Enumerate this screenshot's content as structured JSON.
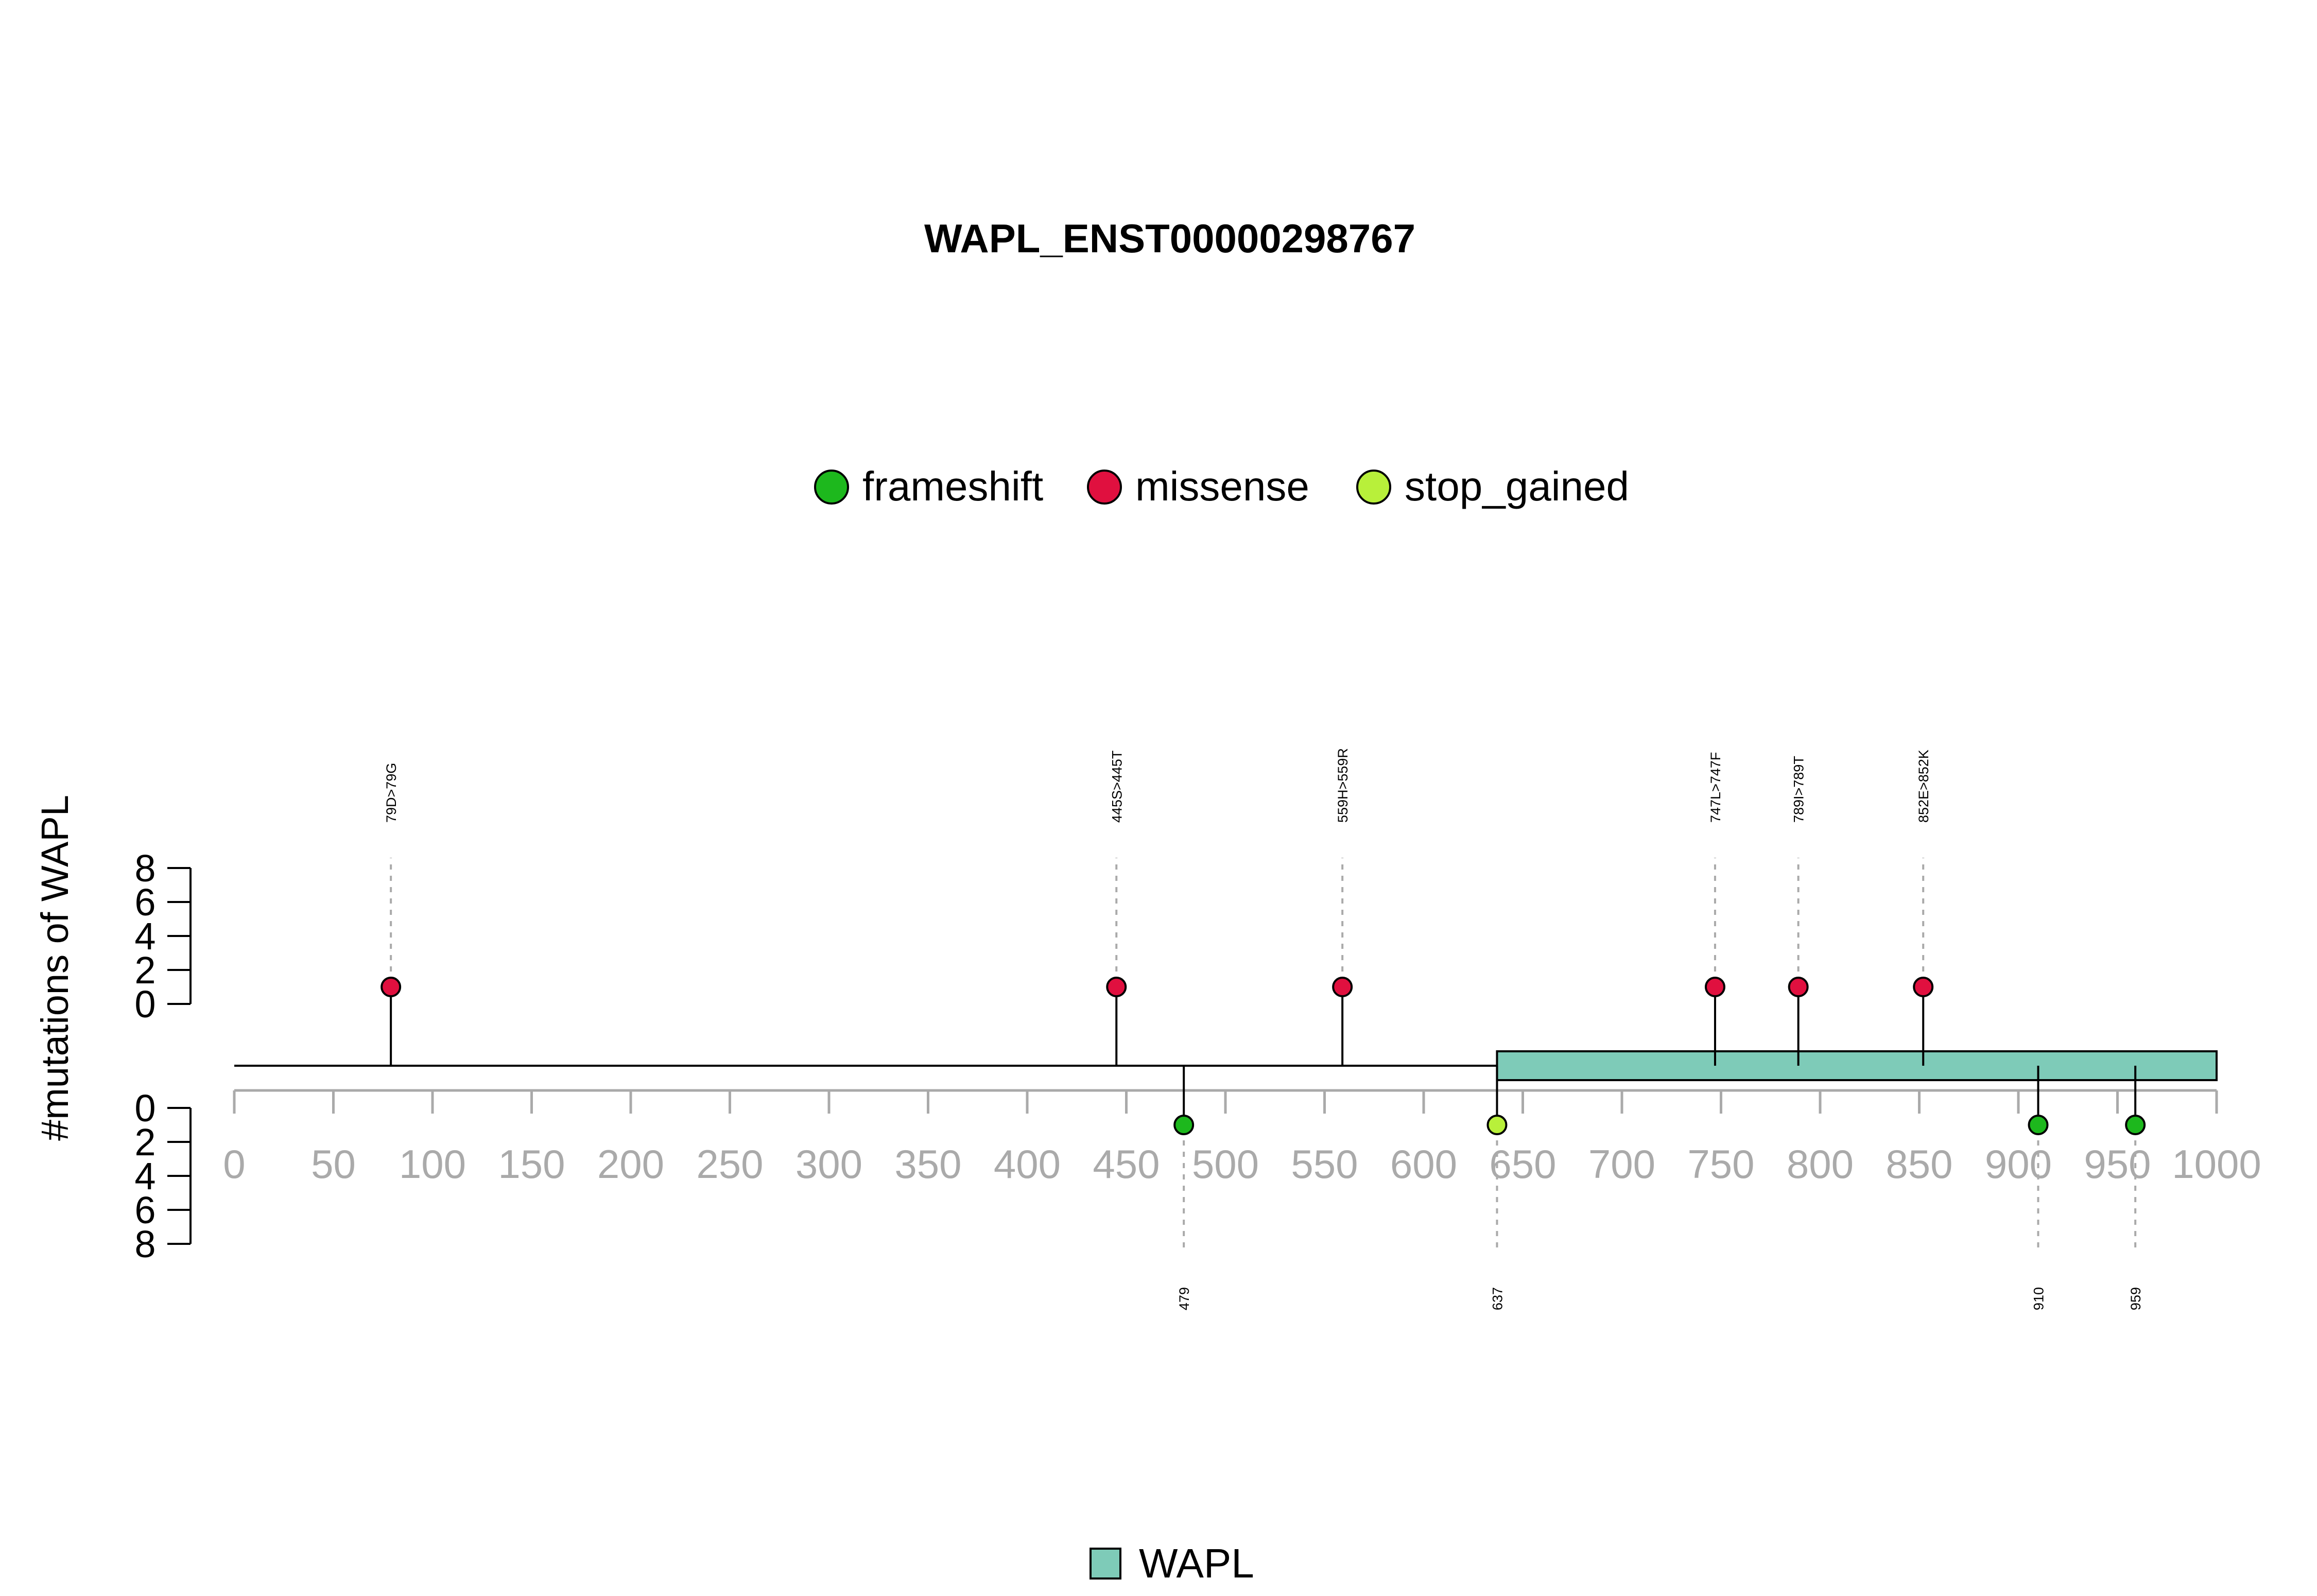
{
  "chart_data": {
    "type": "lollipop",
    "title": "WAPL_ENST00000298767",
    "ylabel": "#mutations of WAPL",
    "x_ticks": [
      0,
      50,
      100,
      150,
      200,
      250,
      300,
      350,
      400,
      450,
      500,
      550,
      600,
      650,
      700,
      750,
      800,
      850,
      900,
      950,
      1000
    ],
    "xlim": [
      0,
      1000
    ],
    "y_ticks": [
      0,
      2,
      4,
      6,
      8
    ],
    "ylim": [
      0,
      8
    ],
    "protein_length": 1000,
    "legend_top": {
      "placement": "top-center",
      "entries": [
        {
          "name": "frameshift",
          "color": "#1DB81D"
        },
        {
          "name": "missense",
          "color": "#E0103F"
        },
        {
          "name": "stop_gained",
          "color": "#B8F03A"
        }
      ]
    },
    "legend_bottom": {
      "placement": "bottom-center",
      "entries": [
        {
          "name": "WAPL",
          "color": "#7ECBB8"
        }
      ]
    },
    "domains": [
      {
        "name": "WAPL",
        "start": 637,
        "end": 1000,
        "color": "#7ECBB8"
      }
    ],
    "mutations_above": [
      {
        "position": 79,
        "label": "79D>79G",
        "type": "missense",
        "count": 1
      },
      {
        "position": 445,
        "label": "445S>445T",
        "type": "missense",
        "count": 1
      },
      {
        "position": 559,
        "label": "559H>559R",
        "type": "missense",
        "count": 1
      },
      {
        "position": 747,
        "label": "747L>747F",
        "type": "missense",
        "count": 1
      },
      {
        "position": 789,
        "label": "789I>789T",
        "type": "missense",
        "count": 1
      },
      {
        "position": 852,
        "label": "852E>852K",
        "type": "missense",
        "count": 1
      }
    ],
    "mutations_below": [
      {
        "position": 479,
        "label": "479",
        "type": "frameshift",
        "count": 1
      },
      {
        "position": 637,
        "label": "637",
        "type": "stop_gained",
        "count": 1
      },
      {
        "position": 910,
        "label": "910",
        "type": "frameshift",
        "count": 1
      },
      {
        "position": 959,
        "label": "959",
        "type": "frameshift",
        "count": 1
      }
    ],
    "type_colors": {
      "frameshift": "#1DB81D",
      "missense": "#E0103F",
      "stop_gained": "#B8F03A"
    }
  }
}
